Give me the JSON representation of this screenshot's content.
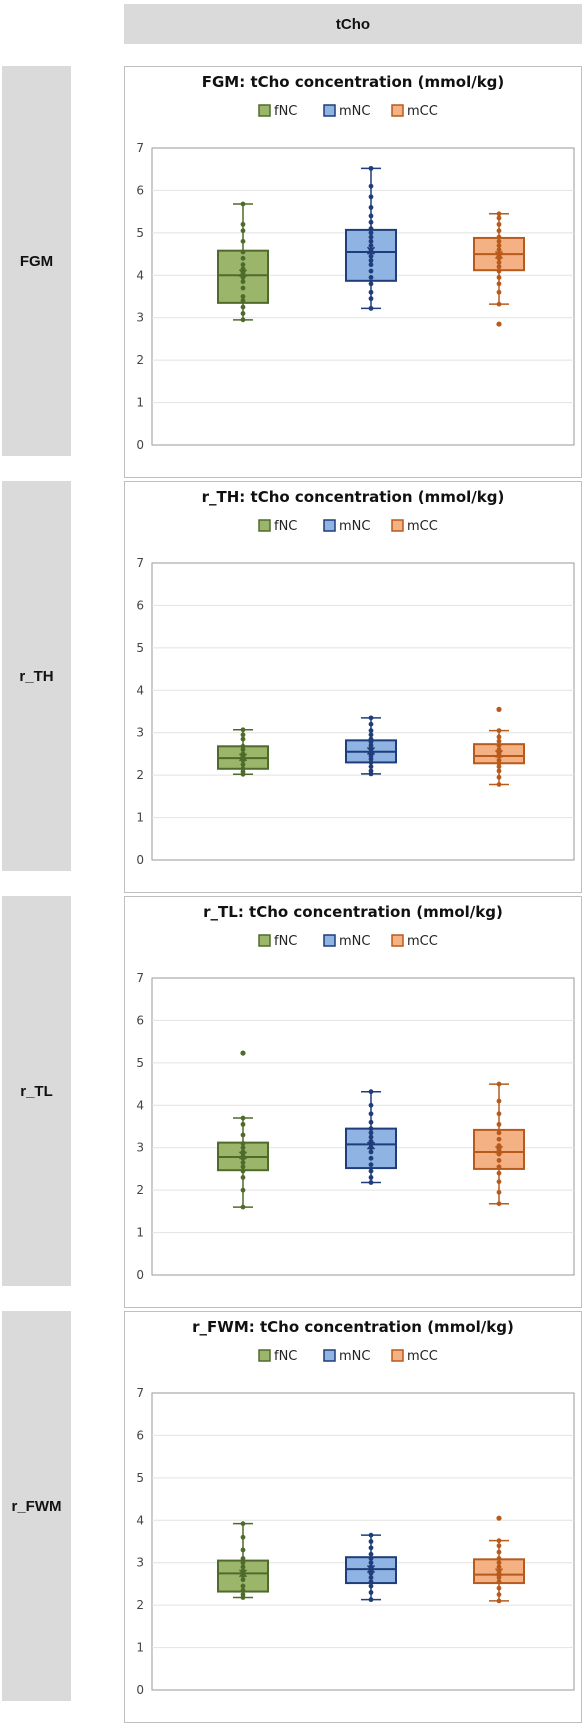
{
  "header": {
    "title": "tCho"
  },
  "colors": {
    "fNC": {
      "fill": "#9bb56b",
      "stroke": "#4f6b2c"
    },
    "mNC": {
      "fill": "#8fb4e3",
      "stroke": "#1f3d7a"
    },
    "mCC": {
      "fill": "#f4b183",
      "stroke": "#b85a1c"
    }
  },
  "chart_data": [
    {
      "type": "box",
      "row_label": "FGM",
      "title": "FGM:   tCho concentration (mmol/kg)",
      "legend": [
        "fNC",
        "mNC",
        "mCC"
      ],
      "yticks": [
        "0",
        "1",
        "2",
        "3",
        "4",
        "5",
        "6",
        "7"
      ],
      "ylim": [
        0,
        7
      ],
      "series": [
        {
          "name": "fNC",
          "min": 2.95,
          "q1": 3.35,
          "median": 4.0,
          "q3": 4.58,
          "max": 5.68,
          "mean": 4.05,
          "points": [
            2.95,
            3.1,
            3.25,
            3.4,
            3.5,
            3.7,
            3.85,
            3.95,
            4.0,
            4.05,
            4.15,
            4.25,
            4.4,
            4.55,
            4.8,
            5.05,
            5.2,
            5.68
          ]
        },
        {
          "name": "mNC",
          "min": 3.22,
          "q1": 3.87,
          "median": 4.55,
          "q3": 5.07,
          "max": 6.52,
          "mean": 4.58,
          "points": [
            3.22,
            3.45,
            3.6,
            3.8,
            3.95,
            4.1,
            4.25,
            4.35,
            4.45,
            4.55,
            4.6,
            4.7,
            4.8,
            4.9,
            5.0,
            5.1,
            5.25,
            5.4,
            5.6,
            5.85,
            6.1,
            6.52
          ]
        },
        {
          "name": "mCC",
          "min": 3.32,
          "q1": 4.12,
          "median": 4.5,
          "q3": 4.88,
          "max": 5.45,
          "mean": 4.48,
          "outliers": [
            2.85
          ],
          "points": [
            3.32,
            3.6,
            3.8,
            3.95,
            4.1,
            4.2,
            4.3,
            4.4,
            4.45,
            4.5,
            4.6,
            4.7,
            4.8,
            4.9,
            5.05,
            5.2,
            5.35,
            5.45
          ]
        }
      ]
    },
    {
      "type": "box",
      "row_label": "r_TH",
      "title": "r_TH:   tCho concentration (mmol/kg)",
      "legend": [
        "fNC",
        "mNC",
        "mCC"
      ],
      "yticks": [
        "0",
        "1",
        "2",
        "3",
        "4",
        "5",
        "6",
        "7"
      ],
      "ylim": [
        0,
        7
      ],
      "series": [
        {
          "name": "fNC",
          "min": 2.02,
          "q1": 2.15,
          "median": 2.4,
          "q3": 2.68,
          "max": 3.07,
          "mean": 2.42,
          "points": [
            2.02,
            2.08,
            2.15,
            2.25,
            2.35,
            2.4,
            2.45,
            2.5,
            2.6,
            2.68,
            2.85,
            2.95,
            3.07
          ]
        },
        {
          "name": "mNC",
          "min": 2.03,
          "q1": 2.3,
          "median": 2.55,
          "q3": 2.82,
          "max": 3.35,
          "mean": 2.57,
          "points": [
            2.03,
            2.1,
            2.2,
            2.3,
            2.38,
            2.45,
            2.5,
            2.55,
            2.62,
            2.7,
            2.78,
            2.85,
            2.95,
            3.05,
            3.2,
            3.35
          ]
        },
        {
          "name": "mCC",
          "min": 1.78,
          "q1": 2.28,
          "median": 2.45,
          "q3": 2.73,
          "max": 3.05,
          "mean": 2.5,
          "outliers": [
            3.55
          ],
          "points": [
            1.78,
            1.95,
            2.1,
            2.2,
            2.28,
            2.35,
            2.45,
            2.5,
            2.6,
            2.7,
            2.8,
            2.9,
            3.05
          ]
        }
      ]
    },
    {
      "type": "box",
      "row_label": "r_TL",
      "title": "r_TL:   tCho concentration (mmol/kg)",
      "legend": [
        "fNC",
        "mNC",
        "mCC"
      ],
      "yticks": [
        "0",
        "1",
        "2",
        "3",
        "4",
        "5",
        "6",
        "7"
      ],
      "ylim": [
        0,
        7
      ],
      "series": [
        {
          "name": "fNC",
          "min": 1.6,
          "q1": 2.47,
          "median": 2.78,
          "q3": 3.12,
          "max": 3.7,
          "mean": 2.82,
          "outliers": [
            5.23
          ],
          "points": [
            1.6,
            2.0,
            2.3,
            2.45,
            2.55,
            2.65,
            2.75,
            2.8,
            2.9,
            3.0,
            3.1,
            3.3,
            3.55,
            3.7
          ]
        },
        {
          "name": "mNC",
          "min": 2.18,
          "q1": 2.52,
          "median": 3.08,
          "q3": 3.45,
          "max": 4.32,
          "mean": 3.05,
          "points": [
            2.18,
            2.3,
            2.45,
            2.6,
            2.75,
            2.9,
            3.0,
            3.08,
            3.15,
            3.25,
            3.35,
            3.45,
            3.6,
            3.8,
            4.0,
            4.32
          ]
        },
        {
          "name": "mCC",
          "min": 1.68,
          "q1": 2.5,
          "median": 2.9,
          "q3": 3.42,
          "max": 4.5,
          "mean": 2.95,
          "points": [
            1.68,
            1.95,
            2.2,
            2.4,
            2.55,
            2.7,
            2.85,
            2.95,
            3.05,
            3.2,
            3.35,
            3.55,
            3.8,
            4.1,
            4.5
          ]
        }
      ]
    },
    {
      "type": "box",
      "row_label": "r_FWM",
      "title": "r_FWM:   tCho concentration (mmol/kg)",
      "legend": [
        "fNC",
        "mNC",
        "mCC"
      ],
      "yticks": [
        "0",
        "1",
        "2",
        "3",
        "4",
        "5",
        "6",
        "7"
      ],
      "ylim": [
        0,
        7
      ],
      "series": [
        {
          "name": "fNC",
          "min": 2.18,
          "q1": 2.32,
          "median": 2.75,
          "q3": 3.05,
          "max": 3.92,
          "mean": 2.75,
          "points": [
            2.18,
            2.25,
            2.35,
            2.45,
            2.6,
            2.7,
            2.75,
            2.8,
            2.9,
            3.0,
            3.1,
            3.3,
            3.6,
            3.92
          ]
        },
        {
          "name": "mNC",
          "min": 2.13,
          "q1": 2.52,
          "median": 2.85,
          "q3": 3.13,
          "max": 3.65,
          "mean": 2.85,
          "points": [
            2.13,
            2.3,
            2.45,
            2.55,
            2.65,
            2.75,
            2.85,
            2.9,
            3.0,
            3.1,
            3.2,
            3.35,
            3.5,
            3.65
          ]
        },
        {
          "name": "mCC",
          "min": 2.1,
          "q1": 2.52,
          "median": 2.72,
          "q3": 3.08,
          "max": 3.52,
          "mean": 2.78,
          "outliers": [
            4.05
          ],
          "points": [
            2.1,
            2.25,
            2.4,
            2.55,
            2.65,
            2.72,
            2.8,
            2.9,
            3.0,
            3.1,
            3.25,
            3.4,
            3.52
          ]
        }
      ]
    }
  ]
}
